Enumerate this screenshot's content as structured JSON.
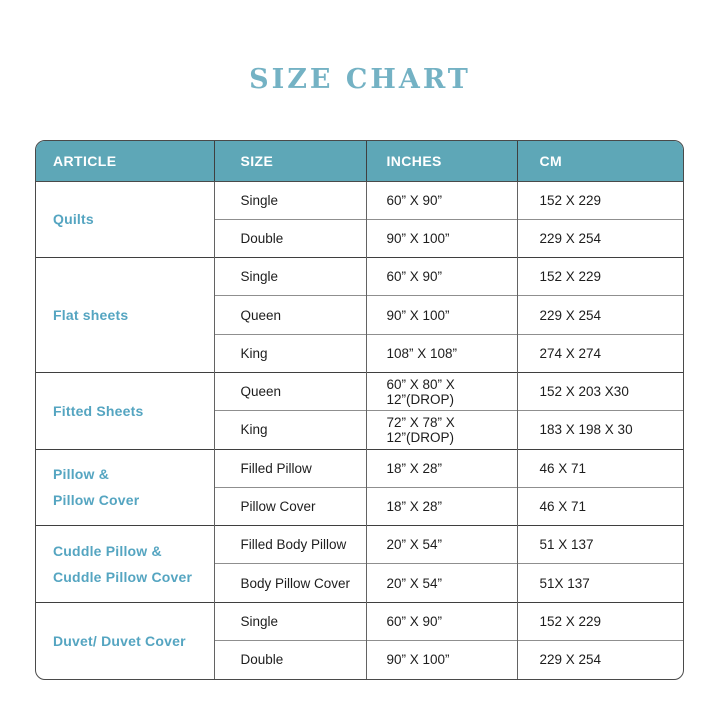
{
  "page": {
    "title": "SIZE CHART"
  },
  "colors": {
    "title_text": "#74b2c4",
    "header_bg": "#5ea7b7",
    "header_text": "#ffffff",
    "article_text": "#55a5c1",
    "body_text": "#1d1d1d",
    "table_border": "#4a4a4a"
  },
  "table": {
    "headers": [
      "ARTICLE",
      "SIZE",
      "INCHES",
      "CM"
    ],
    "groups": [
      {
        "article_lines": [
          "Quilts"
        ],
        "rows": [
          {
            "size": "Single",
            "inches": "60” X 90”",
            "cm": "152 X 229"
          },
          {
            "size": "Double",
            "inches": "90” X 100”",
            "cm": "229 X 254"
          }
        ]
      },
      {
        "article_lines": [
          "Flat sheets"
        ],
        "rows": [
          {
            "size": "Single",
            "inches": "60” X 90”",
            "cm": "152 X 229"
          },
          {
            "size": "Queen",
            "inches": "90” X 100”",
            "cm": "229 X 254"
          },
          {
            "size": "King",
            "inches": "108” X 108”",
            "cm": "274 X 274"
          }
        ]
      },
      {
        "article_lines": [
          "Fitted Sheets"
        ],
        "rows": [
          {
            "size": "Queen",
            "inches": "60” X 80” X 12”(DROP)",
            "cm": "152 X 203 X30"
          },
          {
            "size": "King",
            "inches": "72” X 78” X 12”(DROP)",
            "cm": "183 X 198 X 30"
          }
        ]
      },
      {
        "article_lines": [
          "Pillow &",
          "Pillow Cover"
        ],
        "rows": [
          {
            "size": "Filled Pillow",
            "inches": "18” X 28”",
            "cm": "46 X 71"
          },
          {
            "size": "Pillow Cover",
            "inches": "18” X 28”",
            "cm": "46 X 71"
          }
        ]
      },
      {
        "article_lines": [
          "Cuddle Pillow &",
          "Cuddle Pillow Cover"
        ],
        "rows": [
          {
            "size": "Filled Body Pillow",
            "inches": "20” X 54”",
            "cm": "51 X 137"
          },
          {
            "size": "Body Pillow Cover",
            "inches": "20” X 54”",
            "cm": "51X 137"
          }
        ]
      },
      {
        "article_lines": [
          "Duvet/ Duvet Cover"
        ],
        "rows": [
          {
            "size": "Single",
            "inches": "60” X 90”",
            "cm": "152 X 229"
          },
          {
            "size": "Double",
            "inches": "90” X 100”",
            "cm": "229 X 254"
          }
        ]
      }
    ]
  }
}
